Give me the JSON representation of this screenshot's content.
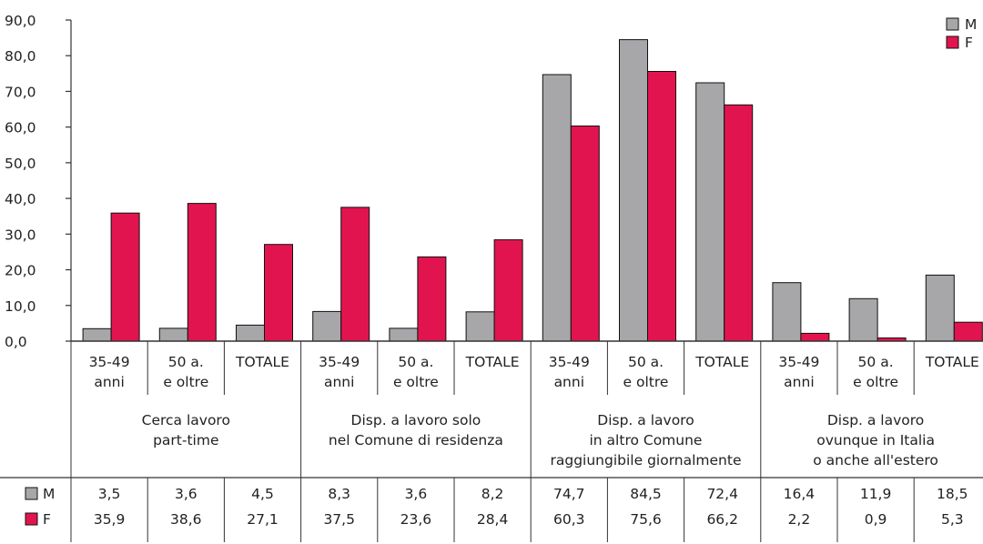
{
  "chart_data": {
    "type": "bar",
    "y_axis": {
      "min": 0,
      "max": 90,
      "step": 10,
      "tick_labels": [
        "0,0",
        "10,0",
        "20,0",
        "30,0",
        "40,0",
        "50,0",
        "60,0",
        "70,0",
        "80,0",
        "90,0"
      ]
    },
    "grid": false,
    "legend_position": "top-right",
    "colors": {
      "M": "#a7a7a9",
      "F": "#e2144f",
      "axis": "#333333"
    },
    "series": [
      {
        "name": "M",
        "legend_label": "M",
        "values": [
          3.5,
          3.6,
          4.5,
          8.3,
          3.6,
          8.2,
          74.7,
          84.5,
          72.4,
          16.4,
          11.9,
          18.5
        ]
      },
      {
        "name": "F",
        "legend_label": "F",
        "values": [
          35.9,
          38.6,
          27.1,
          37.5,
          23.6,
          28.4,
          60.3,
          75.6,
          66.2,
          2.2,
          0.9,
          5.3
        ]
      }
    ],
    "categories": [
      [
        "35-49",
        "anni"
      ],
      [
        "50 a.",
        "e oltre"
      ],
      [
        "TOTALE"
      ],
      [
        "35-49",
        "anni"
      ],
      [
        "50 a.",
        "e oltre"
      ],
      [
        "TOTALE"
      ],
      [
        "35-49",
        "anni"
      ],
      [
        "50 a.",
        "e oltre"
      ],
      [
        "TOTALE"
      ],
      [
        "35-49",
        "anni"
      ],
      [
        "50 a.",
        "e oltre"
      ],
      [
        "TOTALE"
      ]
    ],
    "groups": [
      {
        "lines": [
          "Cerca lavoro",
          "part-time"
        ]
      },
      {
        "lines": [
          "Disp. a lavoro solo",
          "nel Comune di residenza"
        ]
      },
      {
        "lines": [
          "Disp. a lavoro",
          "in altro Comune",
          "raggiungibile giornalmente"
        ]
      },
      {
        "lines": [
          "Disp. a lavoro",
          "ovunque in Italia",
          "o anche all'estero"
        ]
      }
    ],
    "table": {
      "rows": [
        {
          "label": "M",
          "values": [
            "3,5",
            "3,6",
            "4,5",
            "8,3",
            "3,6",
            "8,2",
            "74,7",
            "84,5",
            "72,4",
            "16,4",
            "11,9",
            "18,5"
          ]
        },
        {
          "label": "F",
          "values": [
            "35,9",
            "38,6",
            "27,1",
            "37,5",
            "23,6",
            "28,4",
            "60,3",
            "75,6",
            "66,2",
            "2,2",
            "0,9",
            "5,3"
          ]
        }
      ]
    }
  }
}
